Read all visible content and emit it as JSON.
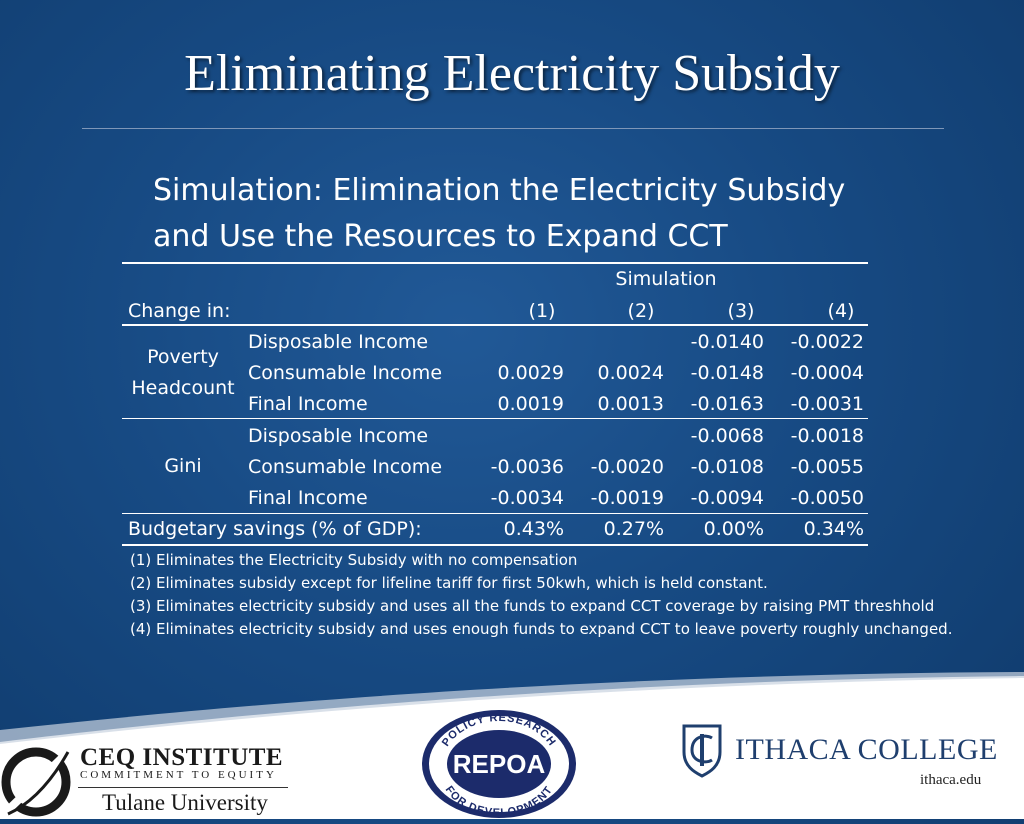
{
  "title": "Eliminating Electricity Subsidy",
  "subtitle": {
    "line1": "Simulation:  Elimination the Electricity Subsidy",
    "line2": "and Use the Resources to Expand CCT"
  },
  "table": {
    "simulation_header": "Simulation",
    "change_in": "Change in:",
    "columns": [
      "(1)",
      "(2)",
      "(3)",
      "(4)"
    ],
    "groups": [
      {
        "label_line1": "Poverty",
        "label_line2": "Headcount",
        "rows": [
          {
            "label": "Disposable Income",
            "values": [
              "",
              "",
              "-0.0140",
              "-0.0022"
            ]
          },
          {
            "label": "Consumable Income",
            "values": [
              "0.0029",
              "0.0024",
              "-0.0148",
              "-0.0004"
            ]
          },
          {
            "label": "Final Income",
            "values": [
              "0.0019",
              "0.0013",
              "-0.0163",
              "-0.0031"
            ]
          }
        ]
      },
      {
        "label_line1": "Gini",
        "label_line2": "",
        "rows": [
          {
            "label": "Disposable Income",
            "values": [
              "",
              "",
              "-0.0068",
              "-0.0018"
            ]
          },
          {
            "label": "Consumable Income",
            "values": [
              "-0.0036",
              "-0.0020",
              "-0.0108",
              "-0.0055"
            ]
          },
          {
            "label": "Final Income",
            "values": [
              "-0.0034",
              "-0.0019",
              "-0.0094",
              "-0.0050"
            ]
          }
        ]
      }
    ],
    "budget_label": "Budgetary savings (% of GDP):",
    "budget_values": [
      "0.43%",
      "0.27%",
      "0.00%",
      "0.34%"
    ]
  },
  "notes": [
    "(1) Eliminates the Electricity Subsidy with no compensation",
    "(2) Eliminates subsidy except for lifeline tariff for first 50kwh, which is held constant.",
    "(3) Eliminates electricity subsidy and uses all the funds to expand CCT coverage by raising PMT threshhold",
    "(4) Eliminates electricity subsidy and uses enough funds to expand CCT to leave poverty roughly unchanged."
  ],
  "logos": {
    "ceq_name": "CEQ INSTITUTE",
    "ceq_tagline": "COMMITMENT TO EQUITY",
    "tulane": "Tulane University",
    "repoa_top": "POLICY RESEARCH",
    "repoa_name": "REPOA",
    "repoa_bottom": "FOR DEVELOPMENT",
    "ithaca_name": "ITHACA COLLEGE",
    "ithaca_url": "ithaca.edu"
  },
  "colors": {
    "background": "#174a83",
    "text": "#ffffff",
    "ithaca_blue": "#1f3f6e",
    "repoa_navy": "#1c2b6b"
  }
}
